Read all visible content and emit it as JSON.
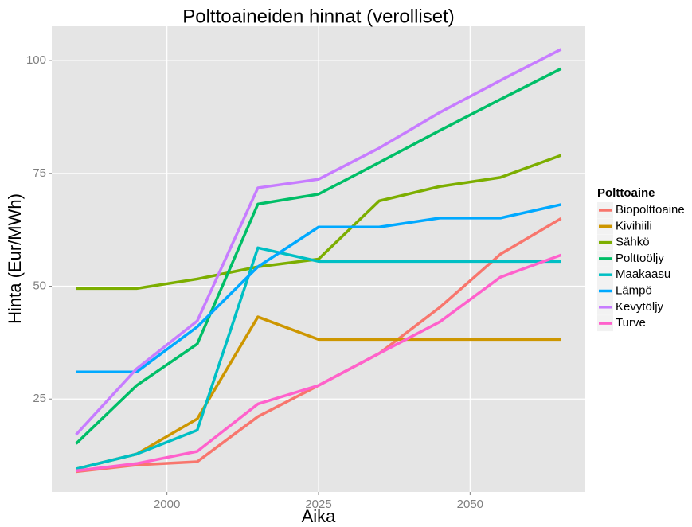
{
  "chart_data": {
    "type": "line",
    "title": "Polttoaineiden hinnat (verolliset)",
    "x_label": "Aika",
    "y_label": "Hinta (Eur/MWh)",
    "legend_title": "Polttoaine",
    "legend": "right",
    "grid": true,
    "x": [
      1985,
      1995,
      2005,
      2015,
      2025,
      2035,
      2045,
      2055,
      2065
    ],
    "xlim": [
      1981,
      2069
    ],
    "xticks": [
      2000,
      2025,
      2050
    ],
    "ylim": [
      4.4,
      107.6
    ],
    "yticks": [
      25,
      50,
      75,
      100
    ],
    "series": [
      {
        "name": "Biopolttoaine",
        "color": "#F8766D",
        "values": [
          8.9,
          10.4,
          11.1,
          21.1,
          28,
          35.1,
          45.3,
          57.1,
          65
        ]
      },
      {
        "name": "Kivihiili",
        "color": "#CD9600",
        "values": [
          9.5,
          12.8,
          20.6,
          43.2,
          38.2,
          38.2,
          38.2,
          38.2,
          38.2
        ]
      },
      {
        "name": "Sähkö",
        "color": "#7CAE00",
        "values": [
          49.5,
          49.5,
          51.6,
          54.3,
          56,
          68.9,
          72.1,
          74.1,
          79
        ]
      },
      {
        "name": "Polttoöljy",
        "color": "#00BE67",
        "values": [
          15.1,
          28,
          37.2,
          68.2,
          70.4,
          77.4,
          84.5,
          91.4,
          98.2
        ]
      },
      {
        "name": "Maakaasu",
        "color": "#00BFC4",
        "values": [
          9.5,
          12.8,
          18.1,
          58.5,
          55.5,
          55.5,
          55.5,
          55.5,
          55.5
        ]
      },
      {
        "name": "Lämpö",
        "color": "#00A9FF",
        "values": [
          31,
          31,
          41,
          54.3,
          63.1,
          63.1,
          65.1,
          65.1,
          68.1
        ]
      },
      {
        "name": "Kevytöljy",
        "color": "#C77CFF",
        "values": [
          17.1,
          31.7,
          42.3,
          71.8,
          73.7,
          80.6,
          88.5,
          95.6,
          102.5
        ]
      },
      {
        "name": "Turve",
        "color": "#FF61CC",
        "values": [
          9.1,
          10.7,
          13.4,
          23.9,
          28,
          35.1,
          42.1,
          52,
          56.9
        ]
      }
    ]
  }
}
